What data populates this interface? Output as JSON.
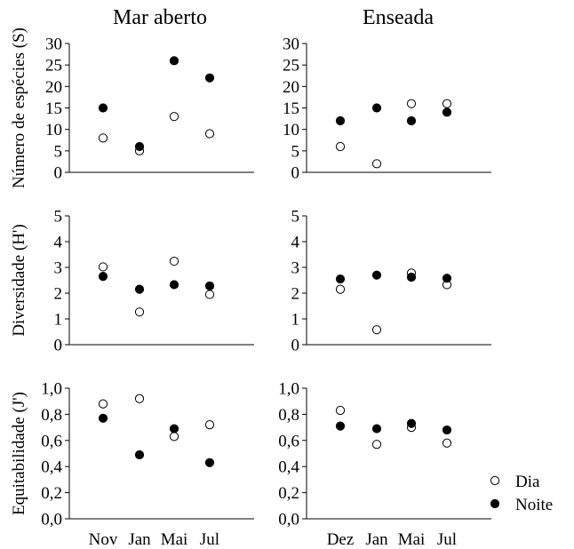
{
  "column_titles": [
    "Mar aberto",
    "Enseada"
  ],
  "row_labels": [
    "Número de espécies (S)",
    "Diversidade (H')",
    "Equitabilidade (J')"
  ],
  "legend": {
    "placement": "bottom-right",
    "items": [
      {
        "label": "Dia",
        "marker": "open-circle"
      },
      {
        "label": "Noite",
        "marker": "filled-circle"
      }
    ]
  },
  "colors": {
    "dia_fill": "#ffffff",
    "noite_fill": "#000000",
    "stroke": "#000000"
  },
  "chart_data": [
    {
      "type": "scatter",
      "column": "Mar aberto",
      "ylabel": "Número de espécies (S)",
      "xlabel": "",
      "categories": [
        "Nov",
        "Jan",
        "Mai",
        "Jul"
      ],
      "show_x_ticks": false,
      "ylim": [
        0,
        30
      ],
      "yticks": [
        "0",
        "5",
        "10",
        "15",
        "20",
        "25",
        "30"
      ],
      "grid": false,
      "series": [
        {
          "name": "Dia",
          "values": [
            8,
            5,
            13,
            9
          ]
        },
        {
          "name": "Noite",
          "values": [
            15,
            6,
            26,
            22
          ]
        }
      ]
    },
    {
      "type": "scatter",
      "column": "Enseada",
      "ylabel": "",
      "xlabel": "",
      "categories": [
        "Dez",
        "Jan",
        "Mai",
        "Jul"
      ],
      "show_x_ticks": false,
      "ylim": [
        0,
        30
      ],
      "yticks": [
        "0",
        "5",
        "10",
        "15",
        "20",
        "25",
        "30"
      ],
      "grid": false,
      "series": [
        {
          "name": "Dia",
          "values": [
            6,
            2,
            16,
            16
          ]
        },
        {
          "name": "Noite",
          "values": [
            12,
            15,
            12,
            14
          ]
        }
      ]
    },
    {
      "type": "scatter",
      "column": "Mar aberto",
      "ylabel": "Diversidade (H')",
      "xlabel": "",
      "categories": [
        "Nov",
        "Jan",
        "Mai",
        "Jul"
      ],
      "show_x_ticks": false,
      "ylim": [
        0,
        5
      ],
      "yticks": [
        "0",
        "1",
        "2",
        "3",
        "4",
        "5"
      ],
      "grid": false,
      "series": [
        {
          "name": "Dia",
          "values": [
            3.02,
            1.27,
            3.24,
            1.95
          ]
        },
        {
          "name": "Noite",
          "values": [
            2.65,
            2.15,
            2.33,
            2.28
          ]
        }
      ]
    },
    {
      "type": "scatter",
      "column": "Enseada",
      "ylabel": "",
      "xlabel": "",
      "categories": [
        "Dez",
        "Jan",
        "Mai",
        "Jul"
      ],
      "show_x_ticks": false,
      "ylim": [
        0,
        5
      ],
      "yticks": [
        "0",
        "1",
        "2",
        "3",
        "4",
        "5"
      ],
      "grid": false,
      "series": [
        {
          "name": "Dia",
          "values": [
            2.15,
            0.58,
            2.78,
            2.33
          ]
        },
        {
          "name": "Noite",
          "values": [
            2.55,
            2.7,
            2.62,
            2.58
          ]
        }
      ]
    },
    {
      "type": "scatter",
      "column": "Mar aberto",
      "ylabel": "Equitabilidade (J')",
      "xlabel": "",
      "categories": [
        "Nov",
        "Jan",
        "Mai",
        "Jul"
      ],
      "show_x_ticks": true,
      "ylim": [
        0,
        1
      ],
      "yticks": [
        "0,0",
        "0,2",
        "0,4",
        "0,6",
        "0,8",
        "1,0"
      ],
      "grid": false,
      "series": [
        {
          "name": "Dia",
          "values": [
            0.88,
            0.92,
            0.63,
            0.72
          ]
        },
        {
          "name": "Noite",
          "values": [
            0.77,
            0.49,
            0.69,
            0.43
          ]
        }
      ]
    },
    {
      "type": "scatter",
      "column": "Enseada",
      "ylabel": "",
      "xlabel": "",
      "categories": [
        "Dez",
        "Jan",
        "Mai",
        "Jul"
      ],
      "show_x_ticks": true,
      "ylim": [
        0,
        1
      ],
      "yticks": [
        "0,0",
        "0,2",
        "0,4",
        "0,6",
        "0,8",
        "1,0"
      ],
      "grid": false,
      "series": [
        {
          "name": "Dia",
          "values": [
            0.83,
            0.57,
            0.7,
            0.58
          ]
        },
        {
          "name": "Noite",
          "values": [
            0.71,
            0.69,
            0.73,
            0.68
          ]
        }
      ]
    }
  ]
}
